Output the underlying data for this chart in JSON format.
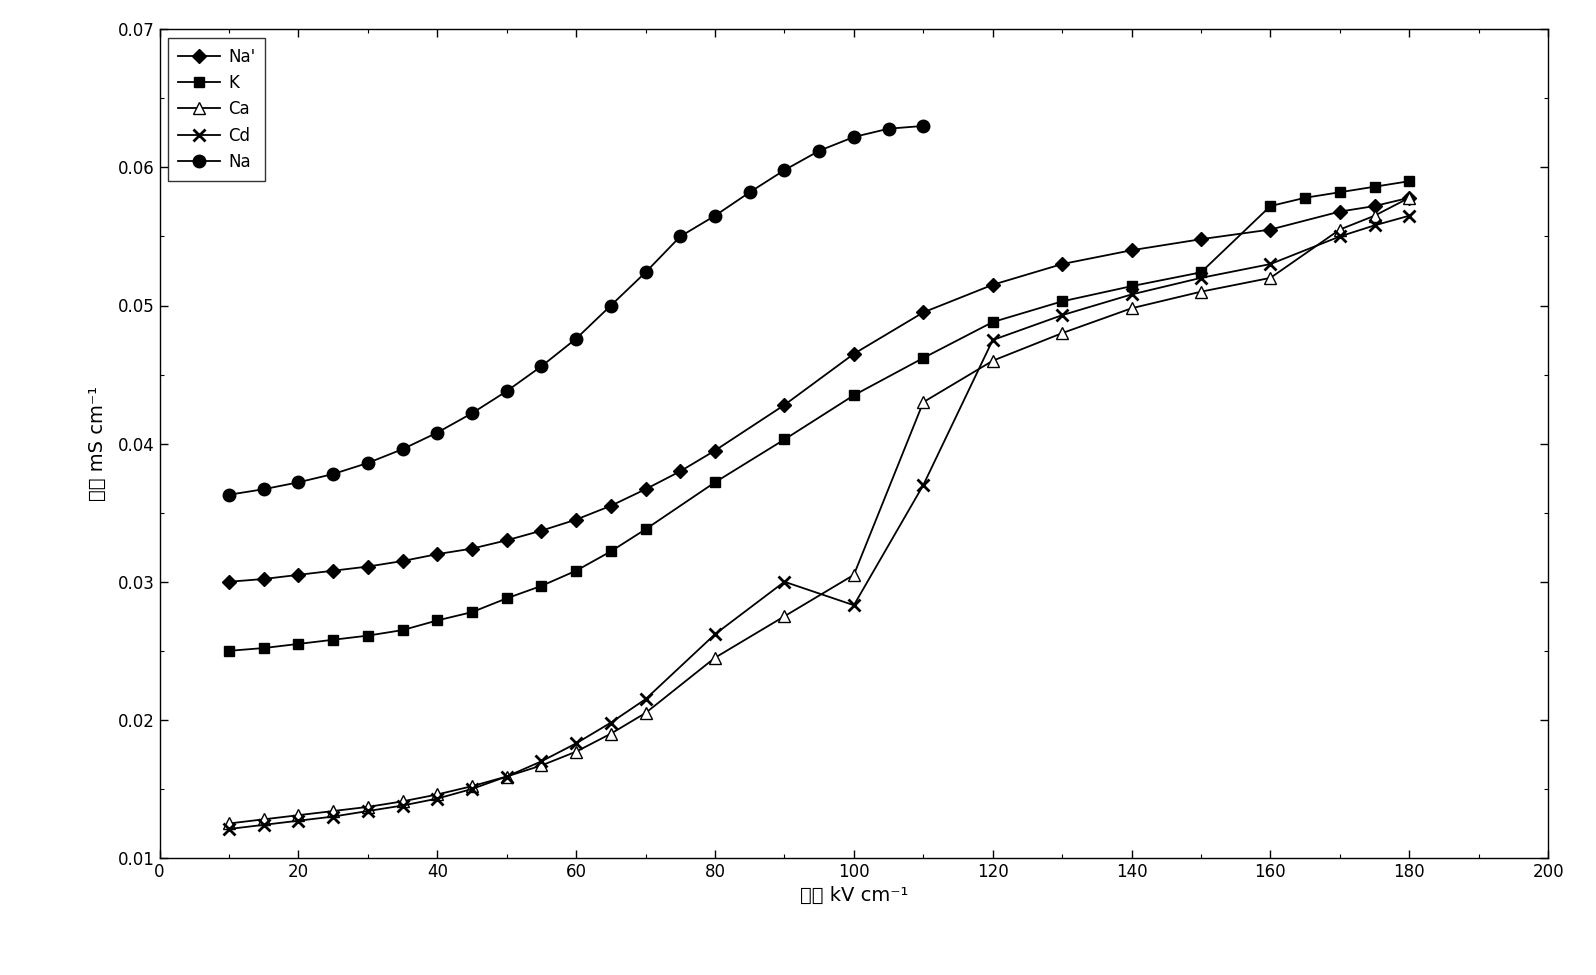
{
  "title": "",
  "xlabel": "场强 kV cm⁻¹",
  "ylabel": "电导 mS cm⁻¹",
  "xlim": [
    0,
    200
  ],
  "ylim": [
    0.01,
    0.07
  ],
  "xticks": [
    0,
    20,
    40,
    60,
    80,
    100,
    120,
    140,
    160,
    180,
    200
  ],
  "yticks": [
    0.01,
    0.02,
    0.03,
    0.04,
    0.05,
    0.06,
    0.07
  ],
  "series": [
    {
      "label": "Na'",
      "marker": "D",
      "color": "#000000",
      "markersize": 7,
      "markerfacecolor": "#000000",
      "x": [
        10,
        15,
        20,
        25,
        30,
        35,
        40,
        45,
        50,
        55,
        60,
        65,
        70,
        75,
        80,
        90,
        100,
        110,
        120,
        130,
        140,
        150,
        160,
        170,
        175,
        180
      ],
      "y": [
        0.03,
        0.0302,
        0.0305,
        0.0308,
        0.0311,
        0.0315,
        0.032,
        0.0324,
        0.033,
        0.0337,
        0.0345,
        0.0355,
        0.0367,
        0.038,
        0.0395,
        0.0428,
        0.0465,
        0.0495,
        0.0515,
        0.053,
        0.054,
        0.0548,
        0.0555,
        0.0568,
        0.0572,
        0.0578
      ]
    },
    {
      "label": "K",
      "marker": "s",
      "color": "#000000",
      "markersize": 7,
      "markerfacecolor": "#000000",
      "x": [
        10,
        15,
        20,
        25,
        30,
        35,
        40,
        45,
        50,
        55,
        60,
        65,
        70,
        80,
        90,
        100,
        110,
        120,
        130,
        140,
        150,
        160,
        165,
        170,
        175,
        180
      ],
      "y": [
        0.025,
        0.0252,
        0.0255,
        0.0258,
        0.0261,
        0.0265,
        0.0272,
        0.0278,
        0.0288,
        0.0297,
        0.0308,
        0.0322,
        0.0338,
        0.0372,
        0.0403,
        0.0435,
        0.0462,
        0.0488,
        0.0503,
        0.0514,
        0.0524,
        0.0572,
        0.0578,
        0.0582,
        0.0586,
        0.059
      ]
    },
    {
      "label": "Ca",
      "marker": "^",
      "color": "#000000",
      "markersize": 8,
      "markerfacecolor": "white",
      "x": [
        10,
        15,
        20,
        25,
        30,
        35,
        40,
        45,
        50,
        55,
        60,
        65,
        70,
        80,
        90,
        100,
        110,
        120,
        130,
        140,
        150,
        160,
        170,
        175,
        180
      ],
      "y": [
        0.0125,
        0.0128,
        0.0131,
        0.0134,
        0.0137,
        0.0141,
        0.0146,
        0.0152,
        0.0159,
        0.0167,
        0.0177,
        0.019,
        0.0205,
        0.0245,
        0.0275,
        0.0305,
        0.043,
        0.046,
        0.048,
        0.0498,
        0.051,
        0.052,
        0.0555,
        0.0565,
        0.0578
      ]
    },
    {
      "label": "Cd",
      "marker": "x",
      "color": "#000000",
      "markersize": 9,
      "markerfacecolor": "#000000",
      "x": [
        10,
        15,
        20,
        25,
        30,
        35,
        40,
        45,
        50,
        55,
        60,
        65,
        70,
        80,
        90,
        100,
        110,
        120,
        130,
        140,
        150,
        160,
        170,
        175,
        180
      ],
      "y": [
        0.0121,
        0.0124,
        0.0127,
        0.013,
        0.0134,
        0.0138,
        0.0143,
        0.015,
        0.0159,
        0.017,
        0.0183,
        0.0198,
        0.0215,
        0.0262,
        0.03,
        0.0283,
        0.037,
        0.0475,
        0.0493,
        0.0508,
        0.052,
        0.053,
        0.055,
        0.0558,
        0.0565
      ]
    },
    {
      "label": "Na",
      "marker": "o",
      "color": "#000000",
      "markersize": 9,
      "markerfacecolor": "#000000",
      "x": [
        10,
        15,
        20,
        25,
        30,
        35,
        40,
        45,
        50,
        55,
        60,
        65,
        70,
        75,
        80,
        85,
        90,
        95,
        100,
        105,
        110
      ],
      "y": [
        0.0363,
        0.0367,
        0.0372,
        0.0378,
        0.0386,
        0.0396,
        0.0408,
        0.0422,
        0.0438,
        0.0456,
        0.0476,
        0.05,
        0.0524,
        0.055,
        0.0565,
        0.0582,
        0.0598,
        0.0612,
        0.0622,
        0.0628,
        0.063
      ]
    }
  ],
  "legend_loc": "upper left",
  "background_color": "#ffffff"
}
